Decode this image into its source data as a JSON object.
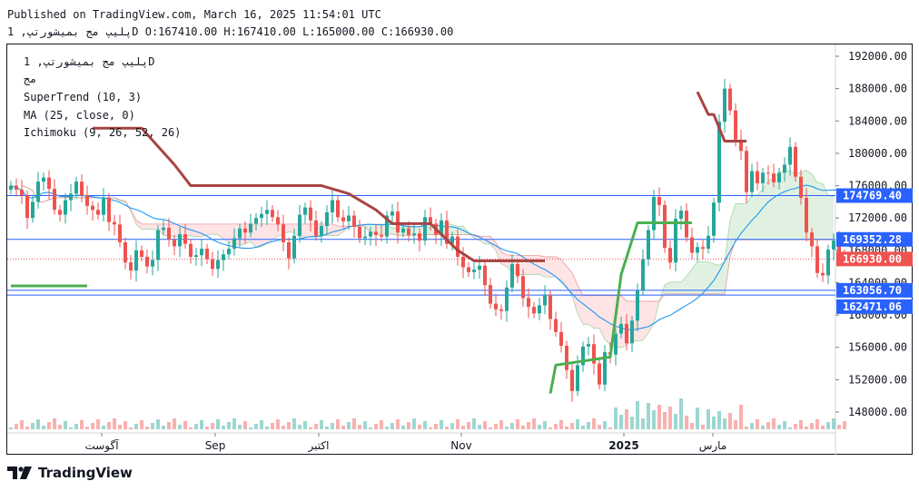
{
  "header": {
    "published_line": "Published on TradingView.com, March 16, 2025 11:54:01 UTC",
    "ohlc_line": "پلیپ مج بمیشورتپ, 1D O:167410.00 H:167410.00 L:165000.00 C:166930.00"
  },
  "legend": {
    "symbol_line": "پلیپ مج بمیشورتپ, 1D",
    "sub_line": "مج",
    "supertrend": "SuperTrend (10, 3)",
    "ma": "MA (25, close, 0)",
    "ichimoku": "Ichimoku (9, 26, 52, 26)"
  },
  "footer": {
    "brand": "TradingView"
  },
  "colors": {
    "up": "#26a69a",
    "down": "#ef5350",
    "supertrend_up": "#4caf50",
    "supertrend_down": "#a94442",
    "ma": "#2196f3",
    "cloud_green": "#c8e6c9",
    "cloud_red": "#ffcdd2",
    "hline": "#2962ff",
    "last_price": "#ef5350"
  },
  "chart_data": {
    "type": "candlestick",
    "y_ticks": [
      "192000.00",
      "188000.00",
      "184000.00",
      "180000.00",
      "176000.00",
      "172000.00",
      "168000.00",
      "164000.00",
      "160000.00",
      "156000.00",
      "152000.00",
      "148000.00"
    ],
    "x_ticks": [
      "آگوست",
      "Sep",
      "اکتبر",
      "Nov",
      "2025",
      "مارس"
    ],
    "ylim": [
      146000,
      194000
    ],
    "price_labels": [
      {
        "text": "174769.40",
        "value": 174769.4,
        "color": "#2962ff"
      },
      {
        "text": "169352.28",
        "value": 169352.28,
        "color": "#2962ff"
      },
      {
        "text": "166930.00",
        "value": 166930.0,
        "color": "#ef5350"
      },
      {
        "text": "163056.70",
        "value": 163056.7,
        "color": "#2962ff"
      },
      {
        "text": "162471.06",
        "value": 162471.06,
        "color": "#2962ff"
      }
    ],
    "horizontal_lines": [
      174769.4,
      169352.28,
      163056.7,
      162471.06
    ],
    "last_price": 166930.0,
    "close_series": [
      176000,
      175500,
      174800,
      172000,
      174000,
      176500,
      177000,
      175600,
      173000,
      172400,
      174200,
      175000,
      176500,
      174800,
      173500,
      173000,
      172400,
      174500,
      171500,
      171200,
      169000,
      166500,
      165500,
      168000,
      167200,
      166000,
      166800,
      170500,
      170800,
      169300,
      168500,
      170000,
      168800,
      167200,
      167400,
      168200,
      166900,
      165700,
      166800,
      167500,
      168200,
      169500,
      170700,
      170200,
      171300,
      172000,
      172500,
      173000,
      172100,
      171200,
      169000,
      167000,
      169800,
      172400,
      173300,
      171700,
      169800,
      171000,
      172700,
      174200,
      172100,
      171600,
      172300,
      170900,
      169500,
      169700,
      170300,
      169900,
      169700,
      172300,
      172800,
      170200,
      170700,
      169900,
      170100,
      169200,
      172100,
      171300,
      169900,
      171700,
      168800,
      169700,
      167200,
      165900,
      165300,
      165600,
      166100,
      163700,
      161400,
      160700,
      160500,
      163400,
      166300,
      164800,
      162100,
      161000,
      160200,
      161200,
      162500,
      159500,
      157900,
      156200,
      153200,
      150600,
      153800,
      156100,
      156400,
      154000,
      151400,
      155400,
      155100,
      157700,
      158900,
      156500,
      159300,
      163000,
      166900,
      170500,
      174600,
      173600,
      168300,
      166500,
      171900,
      172900,
      169600,
      167700,
      168400,
      168200,
      169800,
      173900,
      183900,
      188000,
      185300,
      181700,
      180300,
      175200,
      177800,
      176300,
      177600,
      177500,
      176400,
      177600,
      178600,
      180800,
      177100,
      174500,
      170200,
      168500,
      165200,
      164900,
      168100,
      169200,
      167500,
      166930
    ],
    "supertrend_segments": [
      {
        "trend": "up",
        "points": [
          [
            0,
            163600
          ],
          [
            14,
            163600
          ]
        ]
      },
      {
        "trend": "down",
        "points": [
          [
            15,
            183100
          ],
          [
            24,
            183100
          ],
          [
            30,
            178600
          ],
          [
            33,
            176000
          ],
          [
            57,
            176000
          ],
          [
            62,
            175000
          ],
          [
            67,
            173000
          ],
          [
            70,
            171300
          ],
          [
            77,
            171300
          ],
          [
            82,
            168000
          ],
          [
            85,
            166700
          ],
          [
            98,
            166700
          ]
        ]
      },
      {
        "trend": "up",
        "points": [
          [
            99,
            150300
          ],
          [
            100,
            153800
          ],
          [
            110,
            154800
          ],
          [
            112,
            165000
          ],
          [
            115,
            171400
          ],
          [
            125,
            171400
          ]
        ]
      },
      {
        "trend": "down",
        "points": [
          [
            126,
            187600
          ],
          [
            128,
            184800
          ],
          [
            129,
            184800
          ],
          [
            131,
            181500
          ],
          [
            135,
            181500
          ]
        ]
      }
    ]
  }
}
